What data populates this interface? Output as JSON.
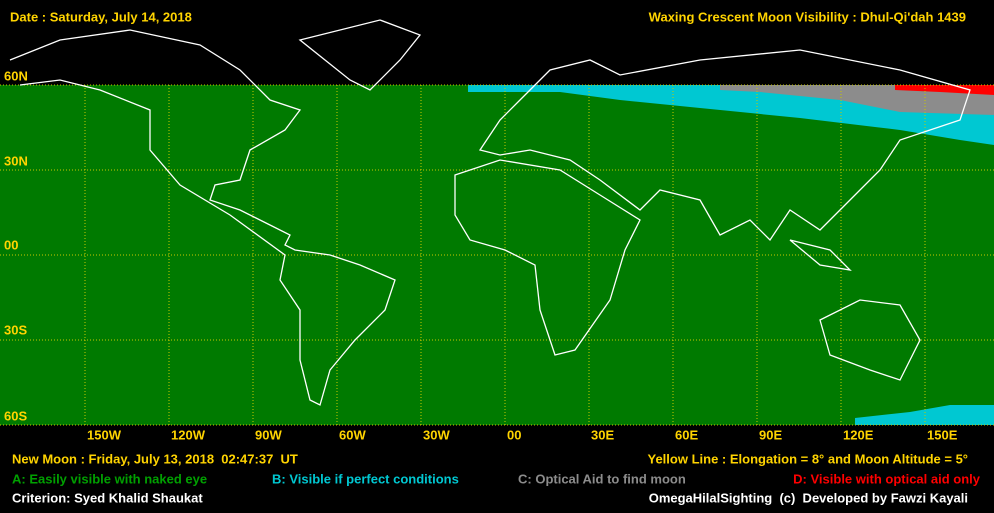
{
  "header": {
    "date": "Date : Saturday, July 14, 2018",
    "title": "Waxing Crescent Moon Visibility : Dhul-Qi'dah 1439"
  },
  "map": {
    "lat_labels": [
      "60N",
      "30N",
      "00",
      "30S",
      "60S"
    ],
    "lon_labels": [
      "150W",
      "120W",
      "90W",
      "60W",
      "30W",
      "00",
      "30E",
      "60E",
      "90E",
      "120E",
      "150E"
    ]
  },
  "footer": {
    "new_moon": "New Moon : Friday, July 13, 2018  02:47:37  UT",
    "yellow_line": "Yellow Line : Elongation = 8° and Moon Altitude = 5°",
    "legend": {
      "a": "A: Easily visible with naked eye",
      "b": "B: Visible if perfect conditions",
      "c": "C: Optical Aid to find moon",
      "d": "D: Visible with optical aid only"
    },
    "criterion": "Criterion: Syed Khalid Shaukat",
    "credit": "OmegaHilalSighting  (c)  Developed by Fawzi Kayali"
  }
}
